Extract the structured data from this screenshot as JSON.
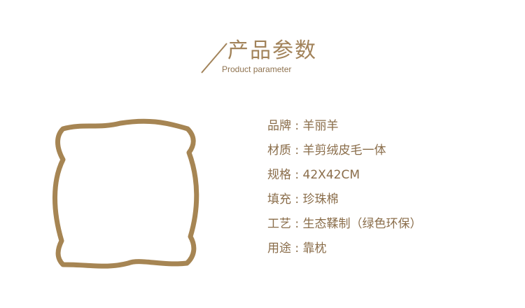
{
  "header": {
    "title": "产品参数",
    "subtitle": "Product parameter"
  },
  "parameters": [
    {
      "label": "品牌",
      "separator": ":",
      "value": "羊丽羊"
    },
    {
      "label": "材质",
      "separator": ":",
      "value": "羊剪绒皮毛一体"
    },
    {
      "label": "规格",
      "separator": ":",
      "value": "42X42CM"
    },
    {
      "label": "填充",
      "separator": ":",
      "value": "珍珠棉"
    },
    {
      "label": "工艺",
      "separator": ":",
      "value": "生态鞣制（绿色环保）"
    },
    {
      "label": "用途",
      "separator": ":",
      "value": "靠枕"
    }
  ],
  "colors": {
    "accent": "#a2835a",
    "text": "#8a6d4a",
    "pillow_outline": "#a68553"
  },
  "icons": {
    "pillow": "pillow-outline-icon",
    "divider": "diagonal-slash-icon"
  }
}
